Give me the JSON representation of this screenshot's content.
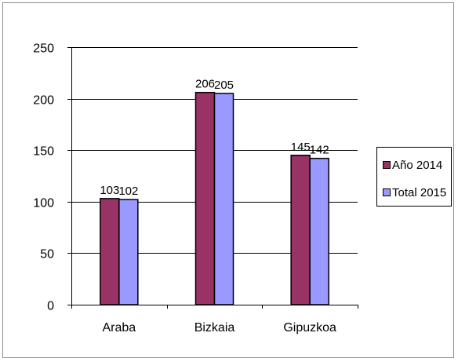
{
  "chart_data": {
    "type": "bar",
    "categories": [
      "Araba",
      "Bizkaia",
      "Gipuzkoa"
    ],
    "series": [
      {
        "name": "Año 2014",
        "values": [
          103,
          206,
          145
        ],
        "color": "#993366"
      },
      {
        "name": "Total 2015",
        "values": [
          102,
          205,
          142
        ],
        "color": "#9999FF"
      }
    ],
    "data_labels": [
      [
        "103",
        "206",
        "145"
      ],
      [
        "102",
        "205",
        "142"
      ]
    ],
    "ylim": [
      0,
      250
    ],
    "yticks": [
      0,
      50,
      100,
      150,
      200,
      250
    ],
    "ytick_labels": [
      "0",
      "50",
      "100",
      "150",
      "200",
      "250"
    ],
    "grid": true,
    "legend_position": "right"
  }
}
